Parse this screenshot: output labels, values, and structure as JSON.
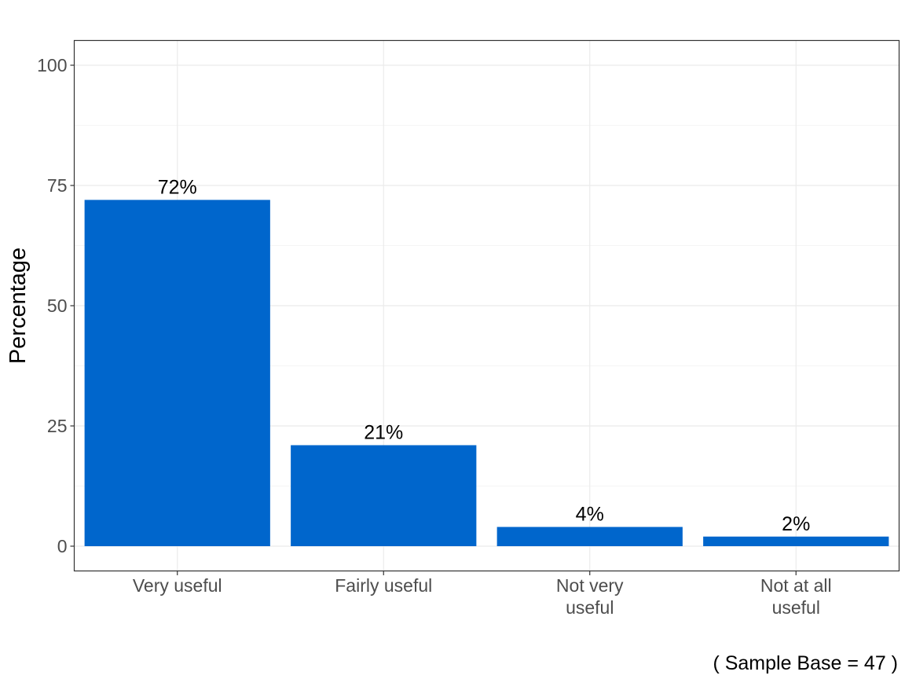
{
  "chart_data": {
    "type": "bar",
    "title": "",
    "xlabel": "",
    "ylabel": "Percentage",
    "ylim": [
      0,
      100
    ],
    "yticks": [
      0,
      25,
      50,
      75,
      100
    ],
    "ytick_labels": [
      "0",
      "25",
      "50",
      "75",
      "100"
    ],
    "categories": [
      "Very useful",
      "Fairly useful",
      "Not very useful",
      "Not at all useful"
    ],
    "category_lines": [
      [
        "Very useful"
      ],
      [
        "Fairly useful"
      ],
      [
        "Not very",
        "useful"
      ],
      [
        "Not at all",
        "useful"
      ]
    ],
    "values": [
      72,
      21,
      4,
      2
    ],
    "data_labels": [
      "72%",
      "21%",
      "4%",
      "2%"
    ],
    "bar_color": "#0066CC",
    "grid": true,
    "legend": "none",
    "caption": "( Sample Base =  47 )"
  }
}
